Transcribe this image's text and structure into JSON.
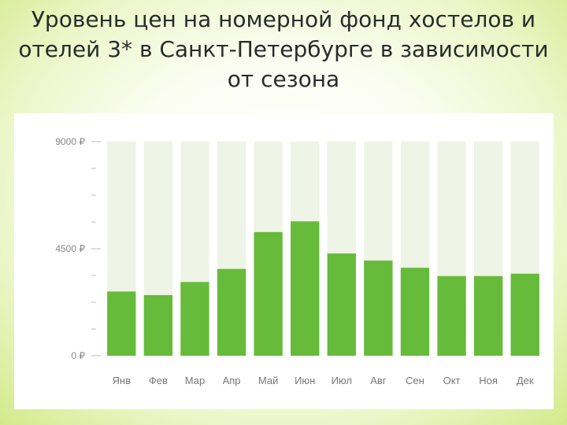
{
  "slide": {
    "title_lines": [
      "Уровень цен на номерной фонд хостелов и",
      "отелей 3* в Санкт-Петербурге в зависимости",
      "от сезона"
    ]
  },
  "colors": {
    "bar": "#66bb3a",
    "track": "#eef4e6",
    "tick": "#bbbbbb"
  },
  "chart_data": {
    "type": "bar",
    "title": "",
    "xlabel": "",
    "ylabel": "",
    "ylim": [
      0,
      9000
    ],
    "y_ticks": [
      {
        "value": 9000,
        "label": "9000 ₽"
      },
      {
        "value": 4500,
        "label": "4500 ₽"
      },
      {
        "value": 0,
        "label": "0 ₽"
      }
    ],
    "minor_tick_step": 1125,
    "categories": [
      "Янв",
      "Фев",
      "Мар",
      "Апр",
      "Май",
      "Июн",
      "Июл",
      "Авг",
      "Сен",
      "Окт",
      "Ноя",
      "Дек"
    ],
    "values": [
      2700,
      2550,
      3100,
      3650,
      5200,
      5650,
      4300,
      4000,
      3700,
      3350,
      3350,
      3450
    ],
    "grid": false,
    "legend": "none"
  }
}
